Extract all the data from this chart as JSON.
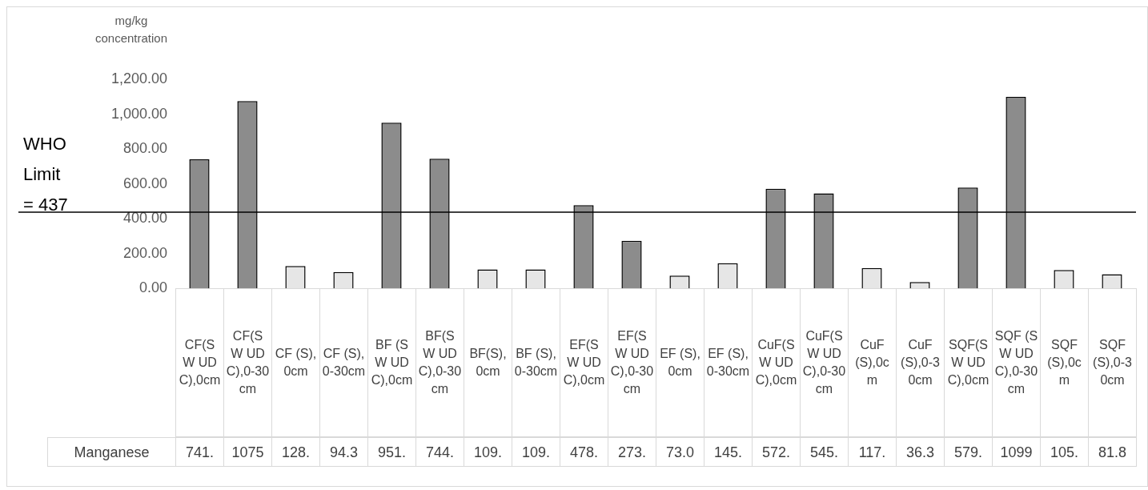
{
  "chart_data": {
    "type": "bar",
    "ylabel": "mg/kg concentration",
    "categories": [
      "CF(S W UDC),0cm",
      "CF(S W UDC),0-30cm",
      "CF (S),0cm",
      "CF (S),0-30cm",
      "BF (S W UDC),0cm",
      "BF(S W UDC),0-30cm",
      "BF(S),0cm",
      "BF (S),0-30cm",
      "EF(S W UDC),0cm",
      "EF(S W UDC),0-30cm",
      "EF (S),0cm",
      "EF (S),0-30cm",
      "CuF(S W UDC),0cm",
      "CuF(S W UDC),0-30cm",
      "CuF(S),0cm",
      "CuF(S),0-30cm",
      "SQF(S W UDC),0cm",
      "SQF (S W UDC),0-30cm",
      "SQF(S),0cm",
      "SQF(S),0-30cm"
    ],
    "series": [
      {
        "name": "Manganese",
        "values": [
          741,
          1075,
          128,
          94.3,
          951,
          744,
          109,
          109,
          478,
          273,
          73.0,
          145,
          572,
          545,
          117,
          36.3,
          579,
          1099,
          105,
          81.8
        ],
        "colors": [
          "#8c8c8c",
          "#8c8c8c",
          "#e6e6e6",
          "#e6e6e6",
          "#8c8c8c",
          "#8c8c8c",
          "#e6e6e6",
          "#e6e6e6",
          "#8c8c8c",
          "#8c8c8c",
          "#e6e6e6",
          "#e6e6e6",
          "#8c8c8c",
          "#8c8c8c",
          "#e6e6e6",
          "#e6e6e6",
          "#8c8c8c",
          "#8c8c8c",
          "#e6e6e6",
          "#e6e6e6"
        ],
        "value_labels": [
          "741.",
          "1075",
          "128.",
          "94.3",
          "951.",
          "744.",
          "109.",
          "109.",
          "478.",
          "273.",
          "73.0",
          "145.",
          "572.",
          "545.",
          "117.",
          "36.3",
          "579.",
          "1099",
          "105.",
          "81.8"
        ]
      }
    ],
    "ylim": [
      0,
      1200
    ],
    "yticks": [
      {
        "value": 0,
        "label": "0.00"
      },
      {
        "value": 200,
        "label": "200.00"
      },
      {
        "value": 400,
        "label": "400.00"
      },
      {
        "value": 600,
        "label": "600.00"
      },
      {
        "value": 800,
        "label": "800.00"
      },
      {
        "value": 1000,
        "label": "1,000.00"
      },
      {
        "value": 1200,
        "label": "1,200.00"
      }
    ],
    "ref_lines": [
      {
        "axis": "y",
        "value": 437,
        "label": "WHO Limit = 437",
        "color": "#000000"
      }
    ],
    "grid": false,
    "legend": "bottom"
  }
}
